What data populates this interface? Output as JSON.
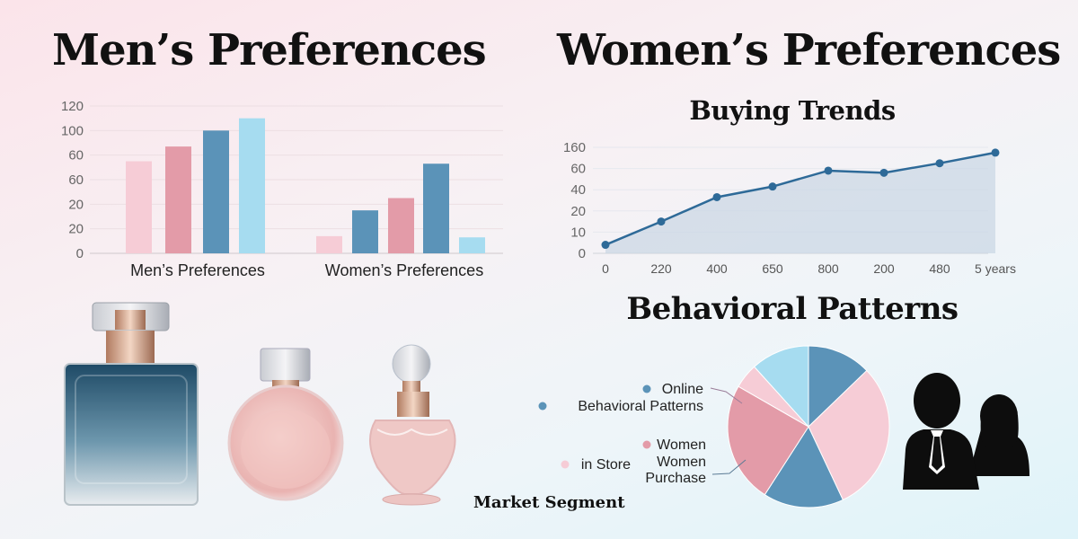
{
  "titles": {
    "men": "Men’s Preferences",
    "women": "Women’s Preferences",
    "buying": "Buying Trends",
    "behavioral": "Behavioral Patterns",
    "segment": "Market Segment"
  },
  "colors": {
    "light_pink": "#f6ccd6",
    "rose": "#e39ba8",
    "steel_blue": "#5b93b8",
    "sky_blue": "#a6dcf0",
    "line": "#2e6a98",
    "area": "#c9d6e4"
  },
  "chart_data": [
    {
      "type": "bar",
      "y_tick_labels": [
        "0",
        "20",
        "20",
        "60",
        "60",
        "100",
        "120"
      ],
      "ylim": [
        0,
        120
      ],
      "grid": true,
      "groups": [
        {
          "label": "Men’s Preferences",
          "values": [
            75,
            87,
            100,
            110
          ],
          "colors": [
            "light_pink",
            "rose",
            "steel_blue",
            "sky_blue"
          ]
        },
        {
          "label": "Women’s Preferences",
          "values": [
            14,
            35,
            45,
            73,
            13
          ],
          "colors": [
            "light_pink",
            "steel_blue",
            "rose",
            "steel_blue",
            "sky_blue"
          ]
        }
      ]
    },
    {
      "type": "area",
      "title": "Buying Trends",
      "x_tick_labels": [
        "0",
        "220",
        "400",
        "650",
        "800",
        "200",
        "480",
        "5 years"
      ],
      "y_tick_labels": [
        "0",
        "10",
        "20",
        "40",
        "60",
        "160"
      ],
      "values": [
        4,
        15,
        33,
        43,
        58,
        56,
        85,
        135
      ],
      "grid": true
    },
    {
      "type": "pie",
      "title": "Behavioral Patterns",
      "slices": [
        {
          "value": 12.8,
          "color": "steel_blue"
        },
        {
          "value": 30.2,
          "color": "light_pink"
        },
        {
          "value": 16.1,
          "color": "steel_blue"
        },
        {
          "value": 24.2,
          "color": "rose"
        },
        {
          "value": 5.0,
          "color": "light_pink"
        },
        {
          "value": 11.7,
          "color": "sky_blue"
        }
      ],
      "legend": [
        {
          "label": "Online",
          "color": "steel_blue"
        },
        {
          "label": "Behavioral Patterns",
          "color": "steel_blue"
        },
        {
          "label": "Women",
          "color": "rose"
        },
        {
          "label": "Women",
          "color": ""
        },
        {
          "label": "Purchase",
          "color": ""
        },
        {
          "label": "in Store",
          "color": "light_pink"
        }
      ]
    }
  ],
  "images": {
    "bottles": [
      "blue-square-perfume-bottle",
      "pink-round-perfume-bottle",
      "pink-crystal-perfume-bottle"
    ],
    "people": "man-and-woman-silhouette-icon"
  }
}
